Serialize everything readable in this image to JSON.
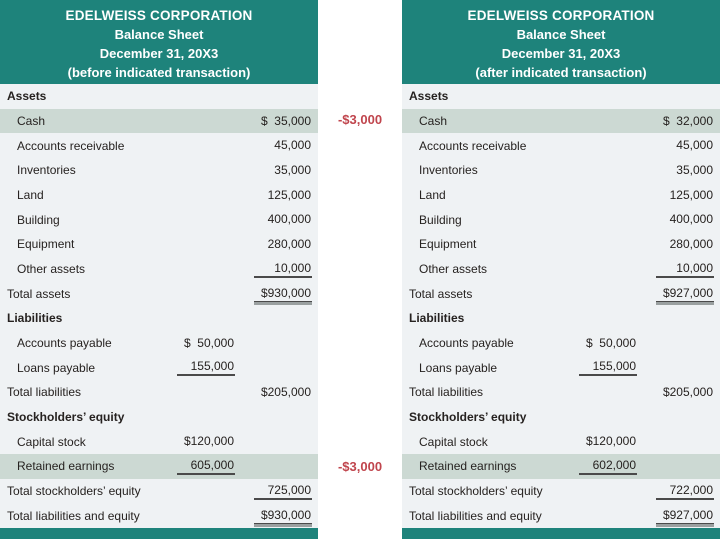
{
  "colors": {
    "teal": "#1E837B",
    "highlight": "#CCD9D3",
    "body_bg": "#EFF2F4",
    "red": "#C0454D",
    "text": "#262220"
  },
  "sheets": [
    {
      "id": "before",
      "header": {
        "company": "EDELWEISS CORPORATION",
        "doc_title": "Balance Sheet",
        "date": "December 31, 20X3",
        "note": "(before indicated transaction)"
      },
      "rows": [
        {
          "label": "Assets",
          "type": "section"
        },
        {
          "label": "Cash",
          "type": "detail",
          "c2": "$  35,000",
          "highlight": true
        },
        {
          "label": "Accounts receivable",
          "type": "detail",
          "c2": "45,000"
        },
        {
          "label": "Inventories",
          "type": "detail",
          "c2": "35,000"
        },
        {
          "label": "Land",
          "type": "detail",
          "c2": "125,000"
        },
        {
          "label": "Building",
          "type": "detail",
          "c2": "400,000"
        },
        {
          "label": "Equipment",
          "type": "detail",
          "c2": "280,000"
        },
        {
          "label": "Other assets",
          "type": "detail",
          "c2": "10,000",
          "u2": "single"
        },
        {
          "label": "Total assets",
          "type": "total",
          "c2": "$930,000",
          "u2": "double"
        },
        {
          "label": "Liabilities",
          "type": "section"
        },
        {
          "label": "Accounts payable",
          "type": "detail",
          "c1": "$  50,000"
        },
        {
          "label": "Loans payable",
          "type": "detail",
          "c1": "155,000",
          "u1": "single"
        },
        {
          "label": "Total liabilities",
          "type": "total",
          "c2": "$205,000"
        },
        {
          "label": "Stockholders’ equity",
          "type": "section"
        },
        {
          "label": "Capital stock",
          "type": "detail",
          "c1": "$120,000"
        },
        {
          "label": "Retained earnings",
          "type": "detail",
          "c1": "605,000",
          "u1": "single",
          "highlight": true
        },
        {
          "label": "Total stockholders’ equity",
          "type": "total",
          "c2": "725,000",
          "u2": "single"
        },
        {
          "label": "Total liabilities and equity",
          "type": "total",
          "c2": "$930,000",
          "u2": "double"
        }
      ]
    },
    {
      "id": "after",
      "header": {
        "company": "EDELWEISS CORPORATION",
        "doc_title": "Balance Sheet",
        "date": "December 31, 20X3",
        "note": "(after indicated transaction)"
      },
      "rows": [
        {
          "label": "Assets",
          "type": "section"
        },
        {
          "label": "Cash",
          "type": "detail",
          "c2": "$  32,000",
          "highlight": true
        },
        {
          "label": "Accounts receivable",
          "type": "detail",
          "c2": "45,000"
        },
        {
          "label": "Inventories",
          "type": "detail",
          "c2": "35,000"
        },
        {
          "label": "Land",
          "type": "detail",
          "c2": "125,000"
        },
        {
          "label": "Building",
          "type": "detail",
          "c2": "400,000"
        },
        {
          "label": "Equipment",
          "type": "detail",
          "c2": "280,000"
        },
        {
          "label": "Other assets",
          "type": "detail",
          "c2": "10,000",
          "u2": "single"
        },
        {
          "label": "Total assets",
          "type": "total",
          "c2": "$927,000",
          "u2": "double"
        },
        {
          "label": "Liabilities",
          "type": "section"
        },
        {
          "label": "Accounts payable",
          "type": "detail",
          "c1": "$  50,000"
        },
        {
          "label": "Loans payable",
          "type": "detail",
          "c1": "155,000",
          "u1": "single"
        },
        {
          "label": "Total liabilities",
          "type": "total",
          "c2": "$205,000"
        },
        {
          "label": "Stockholders’ equity",
          "type": "section"
        },
        {
          "label": "Capital stock",
          "type": "detail",
          "c1": "$120,000"
        },
        {
          "label": "Retained earnings",
          "type": "detail",
          "c1": "602,000",
          "u1": "single",
          "highlight": true
        },
        {
          "label": "Total stockholders’ equity",
          "type": "total",
          "c2": "722,000",
          "u2": "single"
        },
        {
          "label": "Total liabilities and equity",
          "type": "total",
          "c2": "$927,000",
          "u2": "double"
        }
      ]
    }
  ],
  "annotations": [
    {
      "target": "cash",
      "text": "-$3,000"
    },
    {
      "target": "retained-earnings",
      "text": "-$3,000"
    }
  ]
}
